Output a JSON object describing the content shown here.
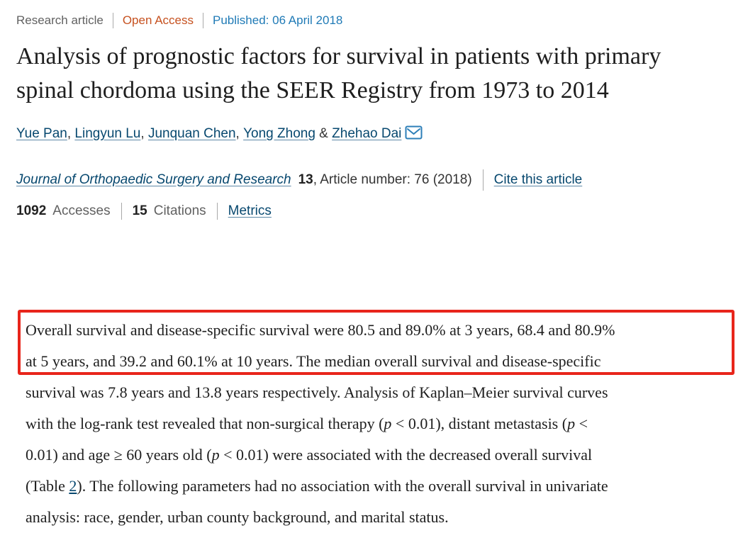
{
  "meta_bar": {
    "article_type": "Research article",
    "open_access": "Open Access",
    "published": "Published: 06 April 2018"
  },
  "article": {
    "title": "Analysis of prognostic factors for survival in patients with primary spinal chordoma using the SEER Registry from 1973 to 2014"
  },
  "authors": {
    "names": [
      "Yue Pan",
      "Lingyun Lu",
      "Junquan Chen",
      "Yong Zhong",
      "Zhehao Dai"
    ],
    "email_icon": "envelope-icon"
  },
  "journal_bar": {
    "journal_name": "Journal of Orthopaedic Surgery and Research",
    "volume": "13",
    "article_info": ", Article number: 76 (2018)",
    "cite_link": "Cite this article"
  },
  "metrics_bar": {
    "accesses_count": "1092",
    "accesses_label": "Accesses",
    "citations_count": "15",
    "citations_label": "Citations",
    "metrics_link": "Metrics"
  },
  "abstract": {
    "lines": [
      [
        {
          "t": "Overall survival and disease-specific survival were 80.5 and 89.0% at 3 years, 68.4 and 80.9%"
        }
      ],
      [
        {
          "t": "at 5 years, and 39.2 and 60.1% at 10 years. The median overall survival and disease-specific"
        }
      ],
      [
        {
          "t": "survival was 7.8 years and 13.8 years respectively. Analysis of Kaplan–Meier survival curves"
        }
      ],
      [
        {
          "t": "with the log-rank test revealed that non-surgical therapy ("
        },
        {
          "t": "p",
          "style": "italic"
        },
        {
          "t": " < 0.01), distant metastasis ("
        },
        {
          "t": "p",
          "style": "italic"
        },
        {
          "t": " <"
        }
      ],
      [
        {
          "t": "0.01) and age ≥ 60 years old ("
        },
        {
          "t": "p",
          "style": "italic"
        },
        {
          "t": " < 0.01) were associated with the decreased overall survival"
        }
      ],
      [
        {
          "t": "(Table "
        },
        {
          "t": "2",
          "style": "link"
        },
        {
          "t": "). The following parameters had no association with the overall survival in univariate"
        }
      ],
      [
        {
          "t": "analysis: race, gender, urban county background, and marital status."
        }
      ]
    ]
  },
  "colors": {
    "link_blue": "#07486f",
    "published_blue": "#1f7ab6",
    "open_access_orange": "#c6511f",
    "highlight_red": "#e8251b",
    "muted_gray": "#616161",
    "text_dark": "#1e1e1e"
  }
}
